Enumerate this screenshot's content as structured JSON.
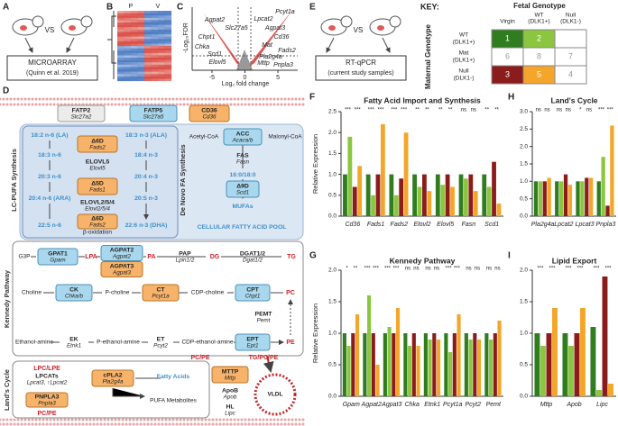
{
  "panels": {
    "A": {
      "label": "A",
      "vs": "VS",
      "method": "MICROARRAY",
      "source": "(Quinn et al. 2019)"
    },
    "B": {
      "label": "B",
      "columns": [
        "P",
        "V"
      ]
    },
    "C": {
      "label": "C",
      "ylabel": "-Log₁₀FDR",
      "xlabel": "Log₂ fold change",
      "xlim": [
        -8,
        8
      ],
      "xticks": [
        -5,
        0,
        5
      ],
      "genes": [
        "Agpat2",
        "Slc27a5",
        "Chpt1",
        "Chka",
        "Scd1",
        "Elovl5",
        "Pcyt1a",
        "Lpcat2",
        "Agpat3",
        "Cd36",
        "Mat",
        "Fads2",
        "Pla2g4a",
        "Mttp",
        "Pnpla3"
      ]
    },
    "D": {
      "label": "D",
      "items": {
        "fatp2": {
          "protein": "FATP2",
          "gene": "Slc27a2"
        },
        "fatp5": {
          "protein": "FATP5",
          "gene": "Slc27a5"
        },
        "cd36": {
          "protein": "CD36",
          "gene": "Cd36"
        },
        "lcpufa": "LC-PUFA Synthesis",
        "denovo": "De Novo FA Synthesis",
        "n6_0": "18:2 n-6 (LA)",
        "n6_1": "18:3 n-6",
        "n6_2": "20:3 n-6",
        "n6_3": "20:4 n-6 (ARA)",
        "n6_4": "22:5 n-6",
        "n3_0": "18:3 n-3 (ALA)",
        "n3_1": "18:4 n-3",
        "n3_2": "20:4 n-3",
        "n3_3": "20:5 n-3",
        "n3_4": "22:6 n-3 (DHA)",
        "d6d_a": {
          "protein": "Δ6D",
          "gene": "Fads2"
        },
        "elovl5": {
          "protein": "ELOVL5",
          "gene": "Elovl5"
        },
        "d5d": {
          "protein": "Δ5D",
          "gene": "Fads1"
        },
        "elovl254": {
          "protein": "ELOVL2/5/4",
          "gene": "Elovl2/5/4"
        },
        "d6d_b": {
          "protein": "Δ6D",
          "gene": "Fads2"
        },
        "boxid": "β-oxidation",
        "acetyl": "Acetyl-CoA",
        "acc": {
          "protein": "ACC",
          "gene": "Acaca/b"
        },
        "malonyl": "Malonyl-CoA",
        "fas": {
          "protein": "FAS",
          "gene": "Fasn"
        },
        "sat": "16:0/18:0",
        "d9d": {
          "protein": "Δ9D",
          "gene": "Scd1"
        },
        "mufa": "MUFAs",
        "pool": "CELLULAR FATTY ACID POOL",
        "kennedy": "Kennedy Pathway",
        "g3p": "G3P",
        "gpat1": {
          "protein": "GPAT1",
          "gene": "Gpam"
        },
        "lpa": "LPA",
        "agpat2": {
          "protein": "AGPAT2",
          "gene": "Agpat2"
        },
        "agpat3": {
          "protein": "AGPAT3",
          "gene": "Agpat3"
        },
        "pa": "PA",
        "pap": {
          "protein": "PAP",
          "gene": "Lpin1/2"
        },
        "dg": "DG",
        "dgat": {
          "protein": "DGAT1/2",
          "gene": "Dgat1/2"
        },
        "tg": "TG",
        "choline": "Choline",
        "ck": {
          "protein": "CK",
          "gene": "Chka/b"
        },
        "pcholine": "P-choline",
        "ct": {
          "protein": "CT",
          "gene": "Pcyt1a"
        },
        "cdpcholine": "CDP-choline",
        "cpt": {
          "protein": "CPT",
          "gene": "Chpt1"
        },
        "pc": "PC",
        "pemt": {
          "protein": "PEMT",
          "gene": "Pemt"
        },
        "ethanolamine": "Ethanol-amine",
        "ek": {
          "protein": "EK",
          "gene": "Etnk1"
        },
        "pethanol": "P-ethanol-amine",
        "et": {
          "protein": "ET",
          "gene": "Pcyt2"
        },
        "cdpethanol": "CDP-ethanol-amine",
        "ept": {
          "protein": "EPT",
          "gene": "Ept1"
        },
        "pe": "PE",
        "lands": "Land's Cycle",
        "lpc": "LPC/LPE",
        "lpcats": {
          "protein": "LPCATs",
          "gene": "Lpcat3, ↑Lpcat2"
        },
        "pnpla3": {
          "protein": "PNPLA3",
          "gene": "Pnpla3"
        },
        "pcpe_l": "PC/PE",
        "cpla2": {
          "protein": "cPLA2",
          "gene": "Pla2g4a"
        },
        "fa": "Fatty Acids",
        "pufa": "PUFA Metabolites",
        "pcpe_arrow": "PC/PE",
        "tgpcpe": "TG/PC/PE",
        "mttp": {
          "protein": "MTTP",
          "gene": "Mttp"
        },
        "apob": {
          "protein": "ApoB",
          "gene": "Apob"
        },
        "hl": {
          "protein": "HL",
          "gene": "Lipc"
        },
        "vldl": "VLDL"
      }
    },
    "E": {
      "label": "E",
      "vs": "VS",
      "method": "RT-qPCR",
      "source": "(current study samples)"
    },
    "key": {
      "title": "KEY:",
      "fetal": "Fetal Genotype",
      "maternal": "Maternal Genotype",
      "columns": [
        [
          "Virgin"
        ],
        [
          "WT",
          "(DLK1+)"
        ],
        [
          "Null",
          "(DLK1-)"
        ]
      ],
      "rows": [
        [
          "WT",
          "(DLK1+)"
        ],
        [
          "Mat",
          "(DLK1+)"
        ],
        [
          "Null",
          "(DLK1-)"
        ]
      ],
      "cells": [
        [
          "1",
          "2",
          null
        ],
        [
          "6",
          "8",
          "7"
        ],
        [
          "3",
          "5",
          "4"
        ]
      ],
      "cell_colors": [
        [
          "#2f7d1e",
          "#8cc63f",
          null
        ],
        [
          "#ffffff",
          "#ffffff",
          "#ffffff"
        ],
        [
          "#8b1c1c",
          "#f4a62a",
          "#ffffff"
        ]
      ]
    }
  },
  "chart_data": [
    {
      "type": "bar",
      "label": "F",
      "title": "Fatty Acid Import and Synthesis",
      "ylabel": "Relative Expression",
      "categories": [
        "Cd36",
        "Fads1",
        "Fads2",
        "Elovl2",
        "Elovl5",
        "Fasn",
        "Scd1"
      ],
      "significance": [
        [
          "***",
          "***"
        ],
        [
          "***",
          "***"
        ],
        [
          "***",
          "***"
        ],
        [
          "**",
          "**"
        ],
        [
          "**",
          "**"
        ],
        [
          "ns",
          "ns"
        ],
        [
          "**",
          "**"
        ]
      ],
      "series": [
        {
          "color": "#2f7d1e",
          "values": [
            1,
            1,
            1,
            1,
            1,
            1,
            1
          ]
        },
        {
          "color": "#8cc63f",
          "values": [
            1.9,
            0.5,
            0.5,
            0.7,
            0.75,
            0.9,
            0.7
          ]
        },
        {
          "color": "#8b1c1c",
          "values": [
            0.7,
            1,
            0.9,
            1,
            1,
            1,
            1.3
          ]
        },
        {
          "color": "#f4a62a",
          "values": [
            1.2,
            2.2,
            2,
            0.6,
            0.7,
            0.6,
            0.3
          ]
        }
      ],
      "ylim": [
        0,
        2.5
      ],
      "yticks": [
        {
          "value": 0,
          "label": "0.0"
        },
        0.5,
        {
          "value": 1,
          "label": "1.0"
        },
        1.5,
        {
          "value": 2,
          "label": "2.0"
        },
        2.5
      ]
    },
    {
      "type": "bar",
      "label": "H",
      "title": "Land's Cycle",
      "categories": [
        "Pla2g4a",
        "Lpcat2",
        "Lpcat3",
        "Pnpla3"
      ],
      "significance": [
        [
          "ns",
          "ns"
        ],
        [
          "ns",
          "ns"
        ],
        [
          "*",
          "ns"
        ],
        [
          "***",
          "***"
        ]
      ],
      "series": [
        {
          "color": "#2f7d1e",
          "values": [
            1,
            1,
            1,
            1
          ]
        },
        {
          "color": "#8cc63f",
          "values": [
            1,
            1,
            1,
            1.7
          ]
        },
        {
          "color": "#8b1c1c",
          "values": [
            1,
            1.2,
            1.1,
            0.3
          ]
        },
        {
          "color": "#f4a62a",
          "values": [
            1.1,
            0.9,
            1.1,
            2.6
          ]
        }
      ],
      "ylim": [
        0,
        3
      ],
      "yticks": [
        {
          "value": 0,
          "label": "0.0"
        },
        0.5,
        {
          "value": 1,
          "label": "1.0"
        },
        1.5,
        {
          "value": 2,
          "label": "2.0"
        },
        2.5,
        {
          "value": 3,
          "label": "3.0"
        }
      ]
    },
    {
      "type": "bar",
      "label": "G",
      "title": "Kennedy Pathway",
      "ylabel": "Relative Expression",
      "categories": [
        "Gpam",
        "Agpat2",
        "Agpat3",
        "Chka",
        "Etnk1",
        "Pcyt1a",
        "Pcyt2",
        "Pemt"
      ],
      "significance": [
        [
          "*",
          "**"
        ],
        [
          "***",
          "***"
        ],
        [
          "***",
          "***"
        ],
        [
          "ns",
          "ns"
        ],
        [
          "ns",
          "ns"
        ],
        [
          "***",
          "***"
        ],
        [
          "ns",
          "ns"
        ],
        [
          "ns",
          "ns"
        ]
      ],
      "series": [
        {
          "color": "#2f7d1e",
          "values": [
            1,
            1,
            1,
            1,
            1,
            1,
            1,
            1
          ]
        },
        {
          "color": "#8cc63f",
          "values": [
            0.8,
            1.6,
            1.1,
            0.8,
            0.9,
            0.7,
            0.9,
            0.9
          ]
        },
        {
          "color": "#8b1c1c",
          "values": [
            1,
            1,
            1,
            1,
            1,
            1,
            1,
            1
          ]
        },
        {
          "color": "#f4a62a",
          "values": [
            1.3,
            0.5,
            1.4,
            0.8,
            0.9,
            1.3,
            0.9,
            1.2
          ]
        }
      ],
      "ylim": [
        0,
        2
      ],
      "yticks": [
        {
          "value": 0,
          "label": "0.0"
        },
        0.5,
        {
          "value": 1,
          "label": "1.0"
        },
        1.5,
        {
          "value": 2,
          "label": "2.0"
        }
      ]
    },
    {
      "type": "bar",
      "label": "I",
      "title": "Lipid Export",
      "categories": [
        "Mttp",
        "Apob",
        "Lipc"
      ],
      "significance": [
        [
          "***",
          "***"
        ],
        [
          "***",
          "***"
        ],
        [
          "***",
          "***"
        ]
      ],
      "series": [
        {
          "color": "#2f7d1e",
          "values": [
            1,
            1,
            1.1
          ]
        },
        {
          "color": "#8cc63f",
          "values": [
            0.8,
            0.8,
            0.1
          ]
        },
        {
          "color": "#8b1c1c",
          "values": [
            1,
            1,
            1.9
          ]
        },
        {
          "color": "#f4a62a",
          "values": [
            1.4,
            1.4,
            0.2
          ]
        }
      ],
      "ylim": [
        0,
        2
      ],
      "yticks": [
        {
          "value": 0,
          "label": "0.0"
        },
        0.5,
        {
          "value": 1,
          "label": "1.0"
        },
        1.5,
        {
          "value": 2,
          "label": "2.0"
        }
      ]
    }
  ]
}
